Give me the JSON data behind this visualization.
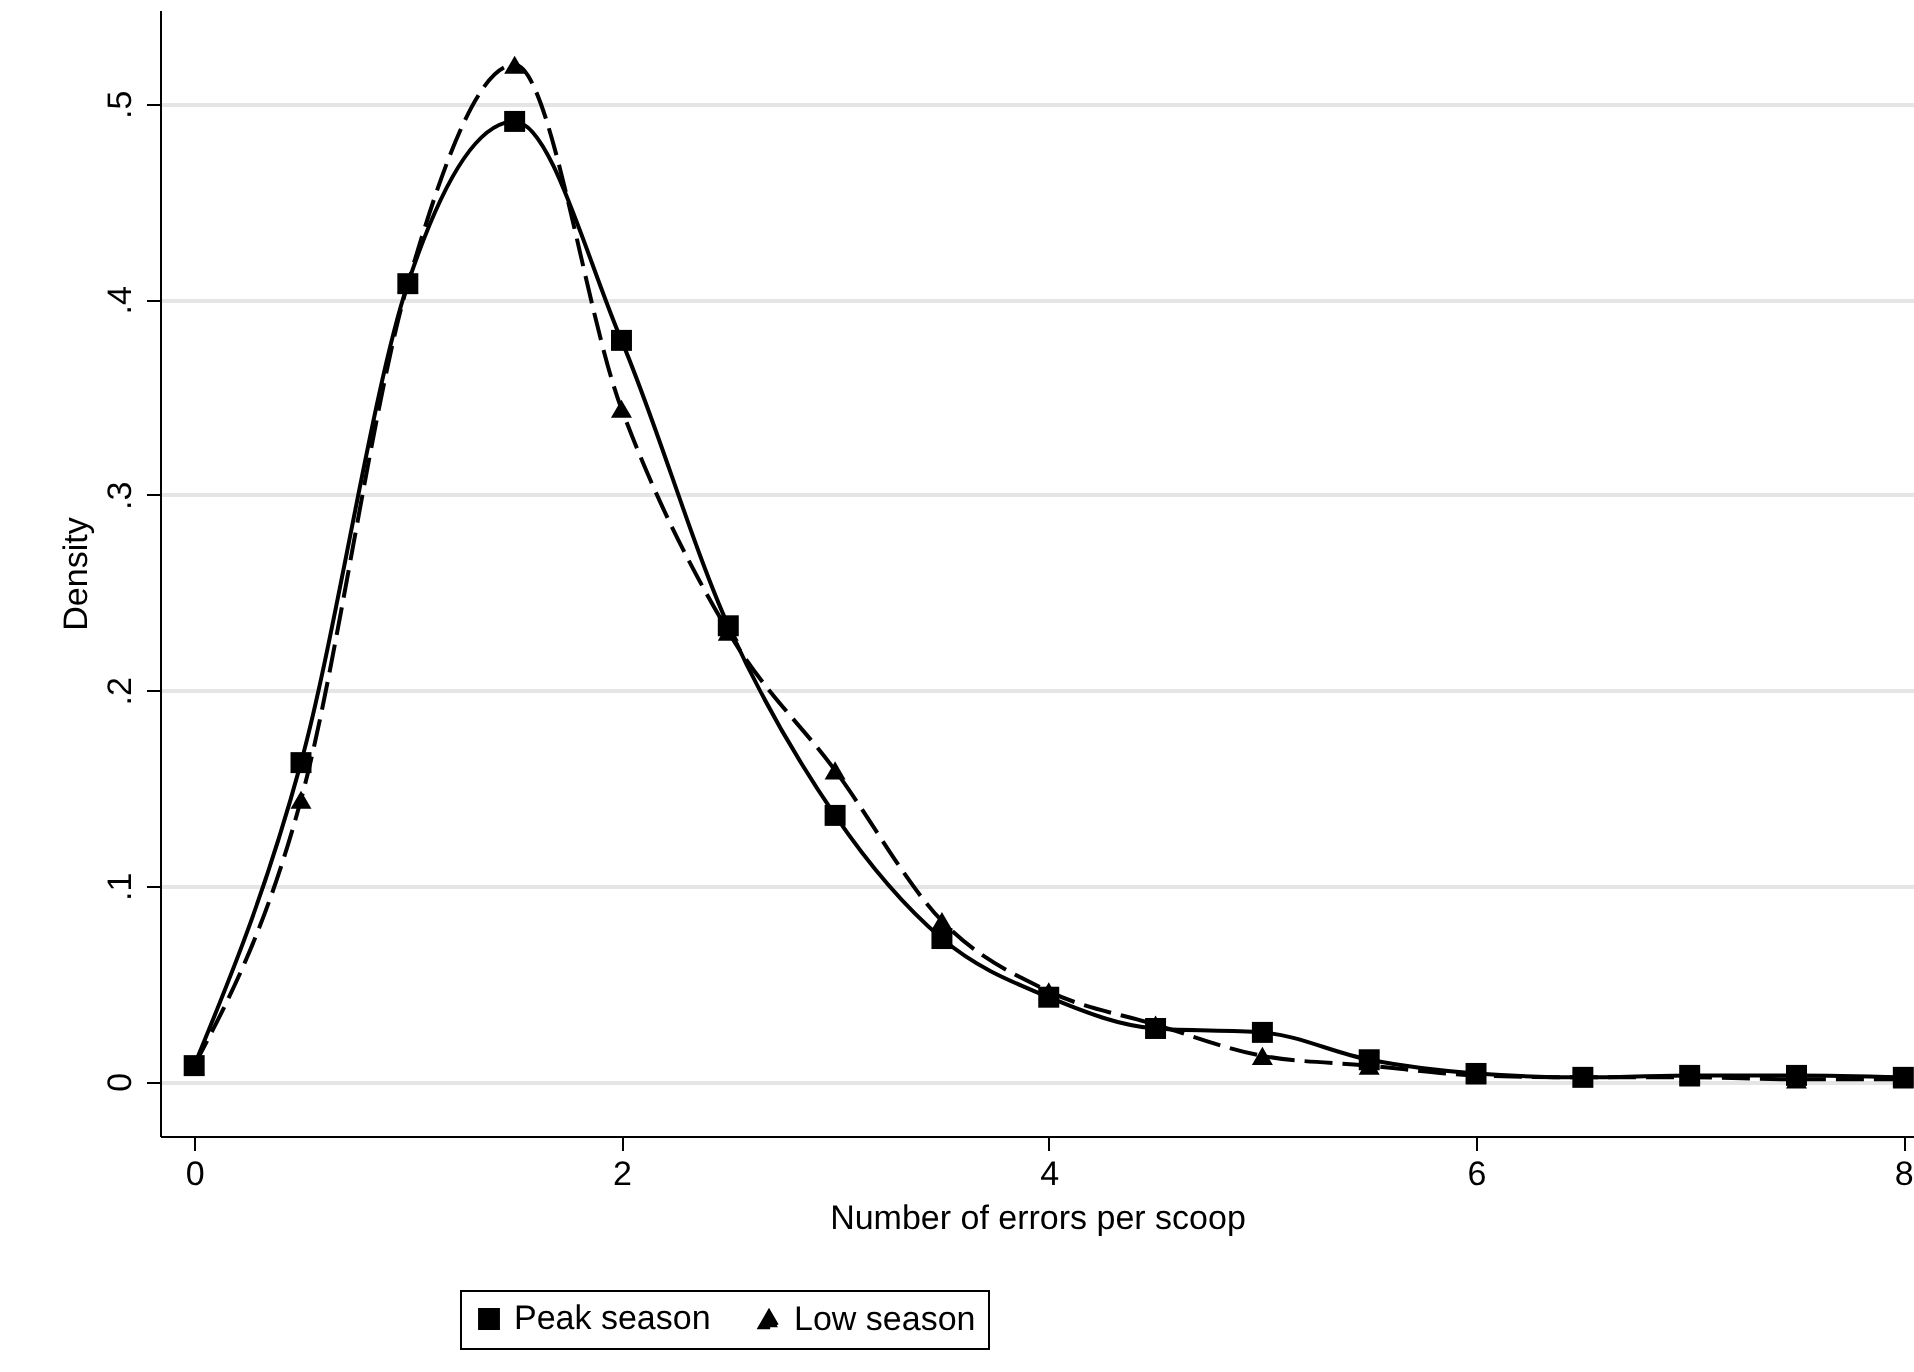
{
  "chart_data": {
    "type": "line",
    "xlabel": "Number of errors per scoop",
    "ylabel": "Density",
    "x": [
      0,
      0.5,
      1,
      1.5,
      2,
      2.5,
      3,
      3.5,
      4,
      4.5,
      5,
      5.5,
      6,
      6.5,
      7,
      7.5,
      8
    ],
    "series": [
      {
        "name": "Peak season",
        "color": "#000000",
        "marker": "square",
        "line_style": "solid",
        "values": [
          0.008,
          0.163,
          0.408,
          0.491,
          0.379,
          0.233,
          0.136,
          0.073,
          0.043,
          0.027,
          0.025,
          0.011,
          0.004,
          0.002,
          0.003,
          0.003,
          0.002
        ]
      },
      {
        "name": "Low season",
        "color": "#000000",
        "marker": "triangle",
        "line_style": "dashed",
        "values": [
          0.008,
          0.144,
          0.408,
          0.52,
          0.344,
          0.23,
          0.159,
          0.082,
          0.046,
          0.029,
          0.013,
          0.008,
          0.003,
          0.002,
          0.002,
          0.001,
          0.001
        ]
      }
    ],
    "xlim": [
      -0.16,
      8.05
    ],
    "xticks": [
      0,
      2,
      4,
      6,
      8
    ],
    "ylim": [
      -0.028,
      0.548
    ],
    "yticks": [
      0,
      {
        "value": 0.1,
        "label": ".1"
      },
      {
        "value": 0.2,
        "label": ".2"
      },
      {
        "value": 0.3,
        "label": ".3"
      },
      {
        "value": 0.4,
        "label": ".4"
      },
      {
        "value": 0.5,
        "label": ".5"
      }
    ],
    "grid": "y",
    "legend": "bottom"
  }
}
